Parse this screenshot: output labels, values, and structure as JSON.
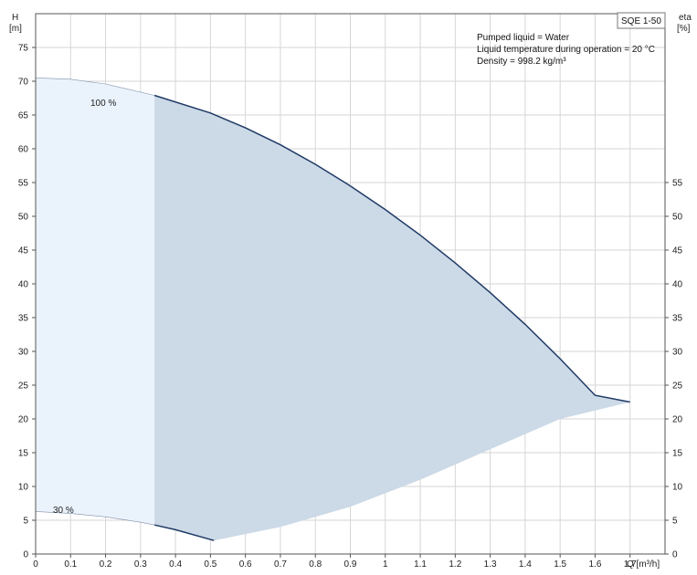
{
  "chart_data": {
    "type": "area",
    "model": "SQE 1-50",
    "info": [
      "Pumped liquid = Water",
      "Liquid temperature during operation = 20 °C",
      "Density = 998.2 kg/m³"
    ],
    "y_left": {
      "label_top": "H",
      "label_unit": "[m]",
      "range": [
        0,
        80
      ],
      "ticks": [
        0,
        5,
        10,
        15,
        20,
        25,
        30,
        35,
        40,
        45,
        50,
        55,
        60,
        65,
        70,
        75
      ]
    },
    "y_right": {
      "label_top": "eta",
      "label_unit": "[%]",
      "ticks": [
        0,
        5,
        10,
        15,
        20,
        25,
        30,
        35,
        40,
        45,
        50,
        55
      ]
    },
    "x": {
      "label": "Q [m³/h]",
      "range": [
        0,
        1.8
      ],
      "ticks": [
        0,
        0.1,
        0.2,
        0.3,
        0.4,
        0.5,
        0.6,
        0.7,
        0.8,
        0.9,
        1.0,
        1.1,
        1.2,
        1.3,
        1.4,
        1.5,
        1.6,
        1.7
      ]
    },
    "grid": true,
    "series": [
      {
        "name": "100 %",
        "x": [
          0,
          0.1,
          0.2,
          0.34,
          0.5,
          0.6,
          0.7,
          0.8,
          0.9,
          1.0,
          1.1,
          1.2,
          1.3,
          1.4,
          1.5,
          1.6,
          1.7
        ],
        "values": [
          70.5,
          70.3,
          69.6,
          67.9,
          65.3,
          63.1,
          60.6,
          57.7,
          54.5,
          51.0,
          47.2,
          43.1,
          38.7,
          34.0,
          28.9,
          23.5,
          22.5
        ]
      },
      {
        "name": "30 %",
        "x": [
          0,
          0.1,
          0.2,
          0.3,
          0.34,
          0.4,
          0.51
        ],
        "values": [
          6.3,
          6.0,
          5.5,
          4.7,
          4.3,
          3.6,
          2.0
        ]
      }
    ],
    "lower_boundary": {
      "x": [
        0.51,
        0.7,
        0.9,
        1.1,
        1.3,
        1.5,
        1.7
      ],
      "values": [
        2.0,
        4.0,
        7.0,
        11.0,
        15.5,
        20.0,
        22.5
      ]
    },
    "light_region_q_max": 0.34,
    "colors": {
      "curve": "#1f3a66",
      "region_light": "#eaf3fc",
      "region_dark": "#ccd9e6",
      "grid": "#d6d6d6"
    }
  }
}
